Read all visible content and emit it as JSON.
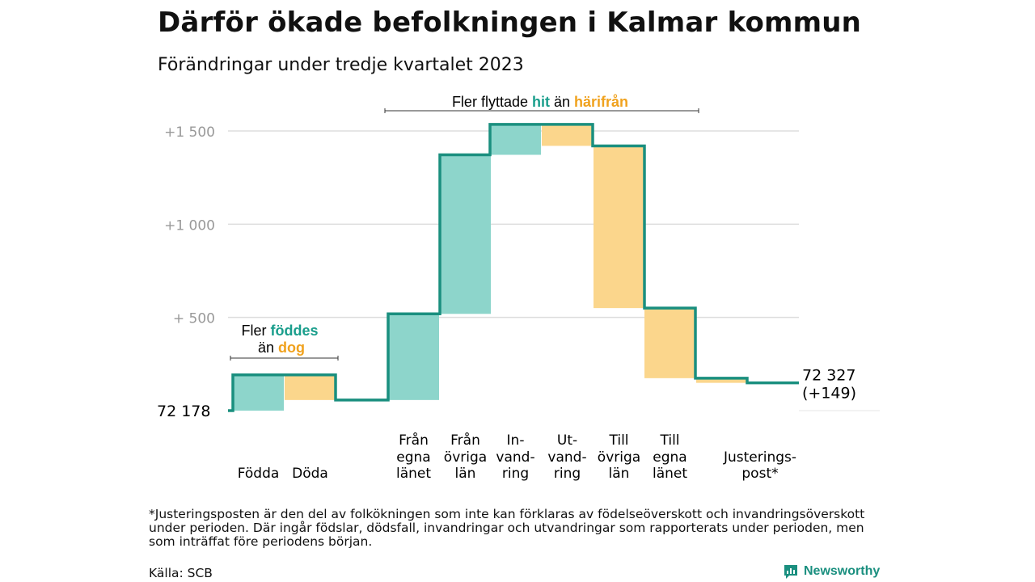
{
  "title": "Därför ökade befolkningen i Kalmar kommun",
  "subtitle": "Förändringar under tredje kvartalet 2023",
  "footnote": "*Justeringsposten är den del av folkökningen som inte kan förklaras av födelseöverskott och invandringsöverskott under perioden. Där ingår födslar, dödsfall, invandringar och utvandringar som rapporterats under perioden, men som inträffat före periodens början.",
  "source": "Källa: SCB",
  "logo_text": "Newsworthy",
  "colors": {
    "increase_fill": "#8dd5cb",
    "decrease_fill": "#fbd68c",
    "step_line": "#1a8f7f",
    "teal_text": "#1a9e8c",
    "orange_text": "#f0a21e",
    "grid": "#dddddd",
    "tick_text": "#999999"
  },
  "chart_data": {
    "type": "waterfall",
    "start_value": 72178,
    "start_label": "72  178",
    "end_value": 72327,
    "end_label": "72 327",
    "end_change_label": "(+149)",
    "y_baseline": 72178,
    "ylim": [
      0,
      1550
    ],
    "yticks": [
      {
        "value": 500,
        "label": "+  500"
      },
      {
        "value": 1000,
        "label": "+1  000"
      },
      {
        "value": 1500,
        "label": "+1  500"
      }
    ],
    "grid": true,
    "steps": [
      {
        "label": [
          "",
          "",
          "Födda"
        ],
        "value": 192,
        "type": "increase"
      },
      {
        "label": [
          "",
          "",
          "Döda"
        ],
        "value": -135,
        "type": "decrease"
      },
      {
        "label": [
          "Från",
          "egna",
          "länet"
        ],
        "value": 462,
        "type": "increase"
      },
      {
        "label": [
          "Från",
          "övriga",
          "län"
        ],
        "value": 853,
        "type": "increase"
      },
      {
        "label": [
          "In-",
          "vand-",
          "ring"
        ],
        "value": 163,
        "type": "increase"
      },
      {
        "label": [
          "Ut-",
          "vand-",
          "ring"
        ],
        "value": -115,
        "type": "decrease"
      },
      {
        "label": [
          "Till",
          "övriga",
          "län"
        ],
        "value": -870,
        "type": "decrease"
      },
      {
        "label": [
          "Till",
          "egna",
          "länet"
        ],
        "value": -376,
        "type": "decrease"
      },
      {
        "label": [
          "",
          "Justerings-",
          "post*"
        ],
        "value": -25,
        "type": "decrease"
      }
    ],
    "annotations": {
      "births": {
        "line1": "Fler ",
        "word_a": "föddes",
        "line2": "än ",
        "word_b": "dog"
      },
      "migration": {
        "prefix": "Fler flyttade ",
        "word_a": "hit",
        "middle": " än ",
        "word_b": "härifrån"
      }
    }
  }
}
